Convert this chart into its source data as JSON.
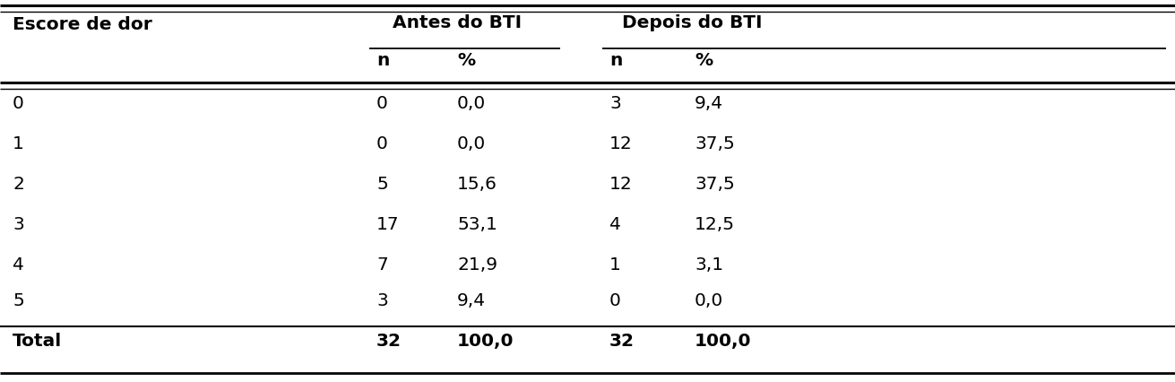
{
  "col_header_row1": [
    "Escore de dor",
    "Antes do BTI",
    "",
    "Depois do BTI",
    ""
  ],
  "col_header_row2": [
    "",
    "n",
    "%",
    "n",
    "%"
  ],
  "rows": [
    [
      "0",
      "0",
      "0,0",
      "3",
      "9,4"
    ],
    [
      "1",
      "0",
      "0,0",
      "12",
      "37,5"
    ],
    [
      "2",
      "5",
      "15,6",
      "12",
      "37,5"
    ],
    [
      "3",
      "17",
      "53,1",
      "4",
      "12,5"
    ],
    [
      "4",
      "7",
      "21,9",
      "1",
      "3,1"
    ],
    [
      "5",
      "3",
      "9,4",
      "0",
      "0,0"
    ]
  ],
  "total_row": [
    "Total",
    "32",
    "100,0",
    "32",
    "100,0"
  ],
  "col_positions_x": [
    14,
    420,
    510,
    680,
    775
  ],
  "background_color": "#ffffff",
  "text_color": "#000000",
  "font_size": 14.5,
  "header_font_size": 14.5,
  "fig_width": 13.11,
  "fig_height": 4.26,
  "dpi": 100
}
